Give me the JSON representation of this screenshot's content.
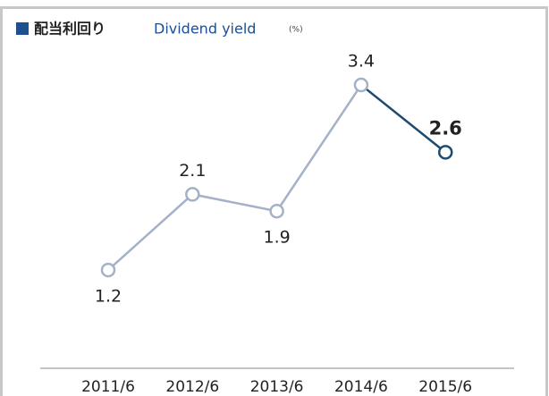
{
  "chart_data": {
    "type": "line",
    "title": "配当利回り",
    "subtitle": "Dividend yield",
    "unit": "(%)",
    "categories": [
      "2011/6",
      "2012/6",
      "2013/6",
      "2014/6",
      "2015/6"
    ],
    "series": [
      {
        "name": "Dividend yield",
        "color": "#a4b1c9",
        "highlight_color": "#1d4a6e",
        "values": [
          1.2,
          2.1,
          1.9,
          3.4,
          2.6
        ]
      }
    ]
  }
}
